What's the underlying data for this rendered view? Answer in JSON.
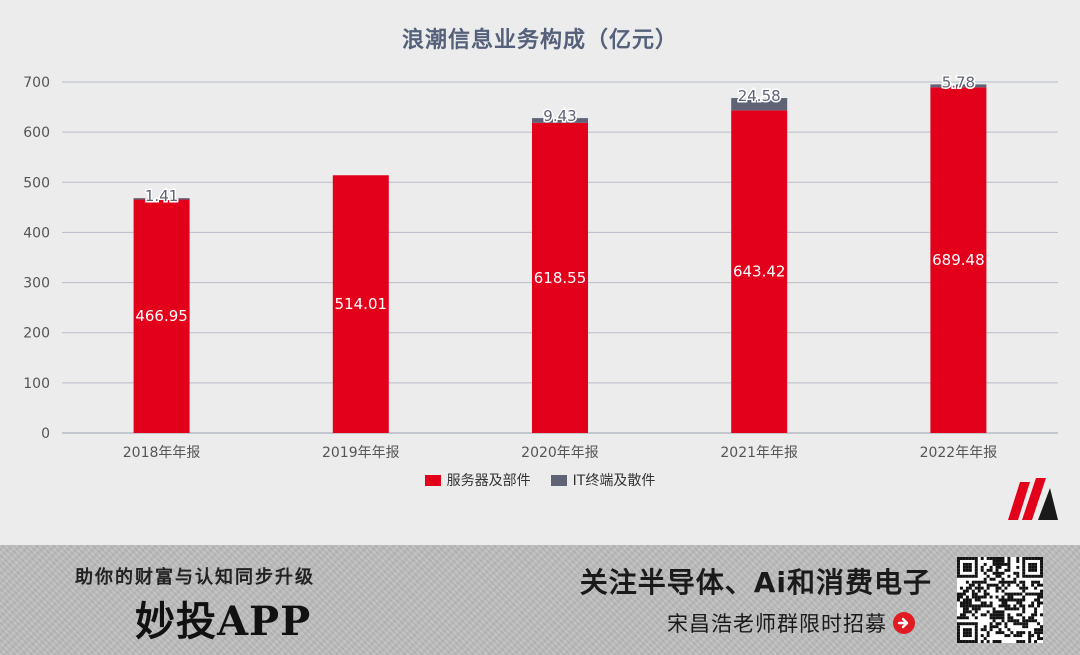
{
  "chart_data": {
    "type": "bar",
    "stacked": true,
    "title": "浪潮信息业务构成（亿元）",
    "categories": [
      "2018年年报",
      "2019年年报",
      "2020年年报",
      "2021年年报",
      "2022年年报"
    ],
    "series": [
      {
        "name": "服务器及部件",
        "color": "#e3001b",
        "values": [
          466.95,
          514.01,
          618.55,
          643.42,
          689.48
        ],
        "labels": [
          "466.95",
          "514.01",
          "618.55",
          "643.42",
          "689.48"
        ]
      },
      {
        "name": "IT终端及散件",
        "color": "#5f6375",
        "values": [
          1.41,
          0,
          9.43,
          24.58,
          5.78
        ],
        "labels": [
          "1.41",
          "",
          "9.43",
          "24.58",
          "5.78"
        ]
      }
    ],
    "ylim": [
      0,
      700
    ],
    "yticks": [
      0,
      100,
      200,
      300,
      400,
      500,
      600,
      700
    ],
    "grid": true,
    "legend": "bottom"
  },
  "banner": {
    "tagline": "助你的财富与认知同步升级",
    "app_name": "妙投APP",
    "follow_text": "关注半导体、Ai和消费电子",
    "recruit_text": "宋昌浩老师群限时招募"
  },
  "icons": {
    "brand_logo": "m-logo-icon",
    "arrow": "arrow-right-circle-icon",
    "qr": "qr-code-icon"
  }
}
